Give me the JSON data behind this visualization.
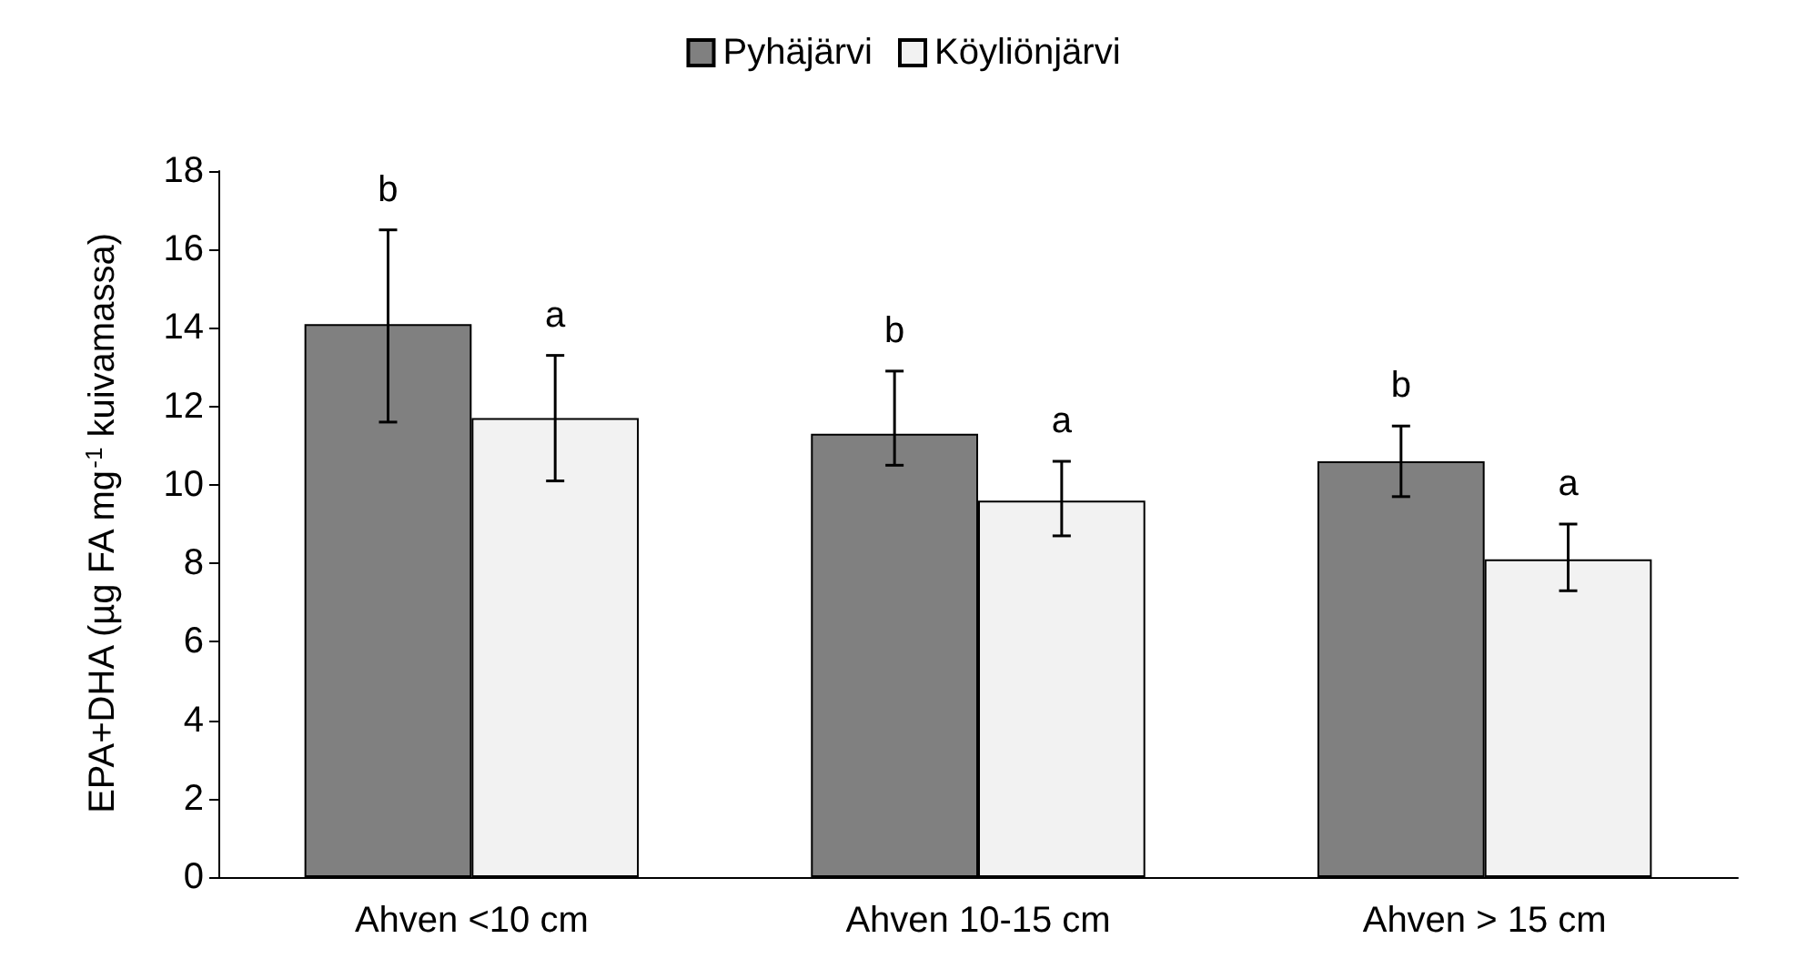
{
  "chart_data": {
    "type": "bar",
    "ylabel": "EPA+DHA (µg FA mg$^{-1}$ kuivamassa)",
    "categories": [
      "Ahven <10 cm",
      "Ahven 10-15 cm",
      "Ahven > 15 cm"
    ],
    "series": [
      {
        "name": "Pyhäjärvi",
        "color": "#808080",
        "values": [
          14.1,
          11.3,
          10.6
        ],
        "errors": [
          [
            11.6,
            16.5
          ],
          [
            10.5,
            12.9
          ],
          [
            9.7,
            11.5
          ]
        ],
        "value_labels": [
          "b",
          "b",
          "b"
        ]
      },
      {
        "name": "Köyliönjärvi",
        "color": "#f2f2f2",
        "values": [
          11.7,
          9.6,
          8.1
        ],
        "errors": [
          [
            10.1,
            13.3
          ],
          [
            8.7,
            10.6
          ],
          [
            7.3,
            9.0
          ]
        ],
        "value_labels": [
          "a",
          "a",
          "a"
        ]
      }
    ],
    "ylim": [
      0,
      18
    ],
    "yticks": [
      0,
      2,
      4,
      6,
      8,
      10,
      12,
      14,
      16,
      18
    ],
    "grid": false,
    "legend": "top"
  }
}
